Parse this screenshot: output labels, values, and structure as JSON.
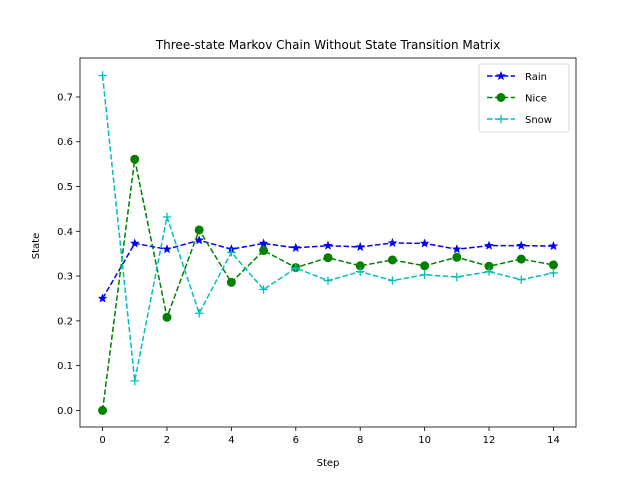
{
  "chart_data": {
    "type": "line",
    "title": "Three-state Markov Chain Without State Transition Matrix",
    "xlabel": "Step",
    "ylabel": "State",
    "xlim": [
      -0.7,
      14.7
    ],
    "ylim": [
      -0.037,
      0.787
    ],
    "x_ticks": [
      0,
      2,
      4,
      6,
      8,
      10,
      12,
      14
    ],
    "y_ticks": [
      0.0,
      0.1,
      0.2,
      0.3,
      0.4,
      0.5,
      0.6,
      0.7
    ],
    "x_tick_labels": [
      "0",
      "2",
      "4",
      "6",
      "8",
      "10",
      "12",
      "14"
    ],
    "y_tick_labels": [
      "0.0",
      "0.1",
      "0.2",
      "0.3",
      "0.4",
      "0.5",
      "0.6",
      "0.7"
    ],
    "grid": false,
    "legend_position": "top-right",
    "x": [
      0,
      1,
      2,
      3,
      4,
      5,
      6,
      7,
      8,
      9,
      10,
      11,
      12,
      13,
      14
    ],
    "series": [
      {
        "name": "Rain",
        "color": "#0000ff",
        "marker": "star",
        "linestyle": "dashed",
        "values": [
          0.25,
          0.373,
          0.36,
          0.38,
          0.36,
          0.373,
          0.363,
          0.368,
          0.365,
          0.374,
          0.373,
          0.36,
          0.368,
          0.368,
          0.367
        ]
      },
      {
        "name": "Nice",
        "color": "#008000",
        "marker": "circle",
        "linestyle": "dashed",
        "values": [
          0.0,
          0.561,
          0.208,
          0.403,
          0.286,
          0.357,
          0.319,
          0.341,
          0.323,
          0.336,
          0.323,
          0.342,
          0.322,
          0.338,
          0.325
        ]
      },
      {
        "name": "Snow",
        "color": "#00bfbf",
        "marker": "plus",
        "linestyle": "dashed",
        "values": [
          0.748,
          0.066,
          0.432,
          0.217,
          0.353,
          0.27,
          0.318,
          0.29,
          0.31,
          0.29,
          0.303,
          0.298,
          0.31,
          0.292,
          0.307
        ]
      }
    ]
  }
}
